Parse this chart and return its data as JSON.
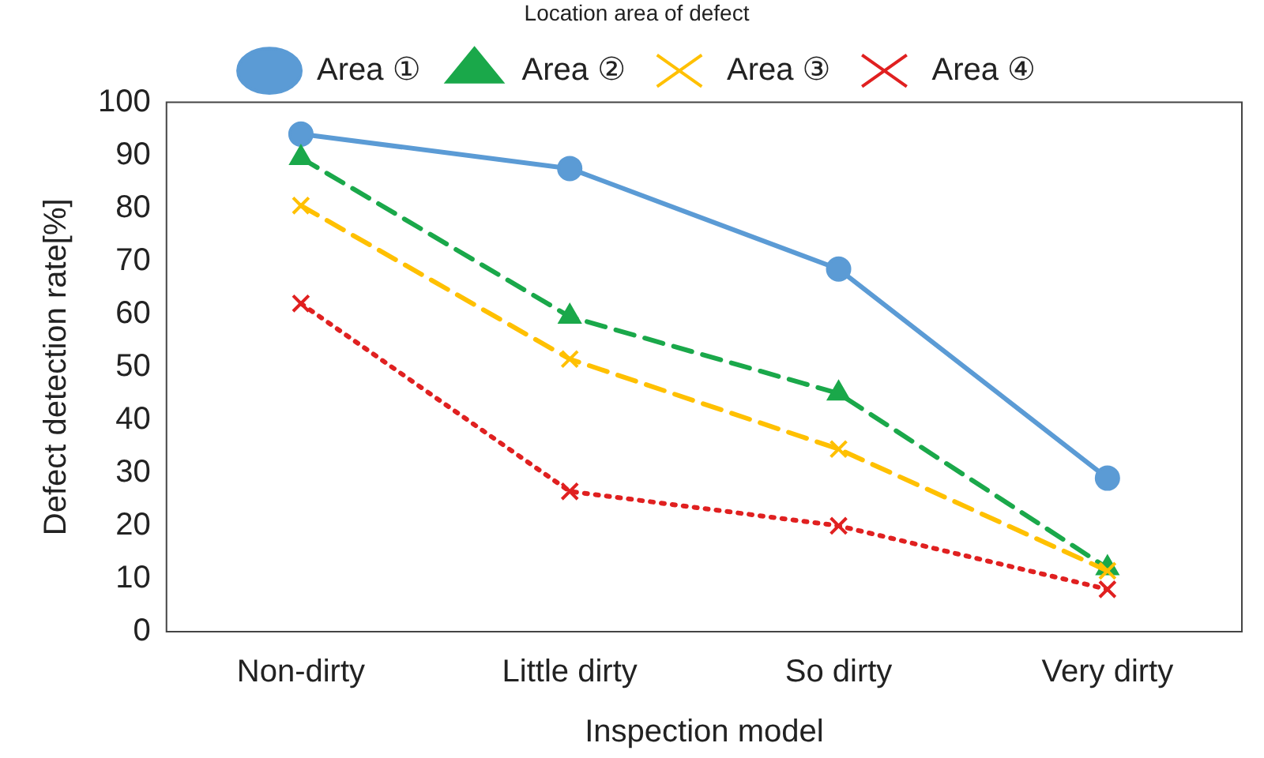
{
  "chart_data": {
    "type": "line",
    "legend_title": "Location area of defect",
    "xlabel": "Inspection model",
    "ylabel": "Defect detection rate[%]",
    "categories": [
      "Non-dirty",
      "Little dirty",
      "So dirty",
      "Very dirty"
    ],
    "ylim": [
      0,
      100
    ],
    "yticks": [
      0,
      10,
      20,
      30,
      40,
      50,
      60,
      70,
      80,
      90,
      100
    ],
    "grid": false,
    "legend": "top",
    "series": [
      {
        "name": "Area ①",
        "color": "#5b9bd5",
        "marker": "circle",
        "line_style": "solid",
        "values": [
          94,
          87.5,
          68.5,
          29
        ]
      },
      {
        "name": "Area ②",
        "color": "#1aa84a",
        "marker": "triangle",
        "line_style": "dashed",
        "values": [
          89.5,
          59.5,
          45,
          12
        ]
      },
      {
        "name": "Area ③",
        "color": "#ffc000",
        "marker": "cross",
        "line_style": "dashed",
        "values": [
          80.5,
          51.5,
          34.5,
          11.5
        ]
      },
      {
        "name": "Area ④",
        "color": "#e02020",
        "marker": "cross",
        "line_style": "dotted",
        "values": [
          62,
          26.5,
          20,
          8
        ]
      }
    ]
  }
}
